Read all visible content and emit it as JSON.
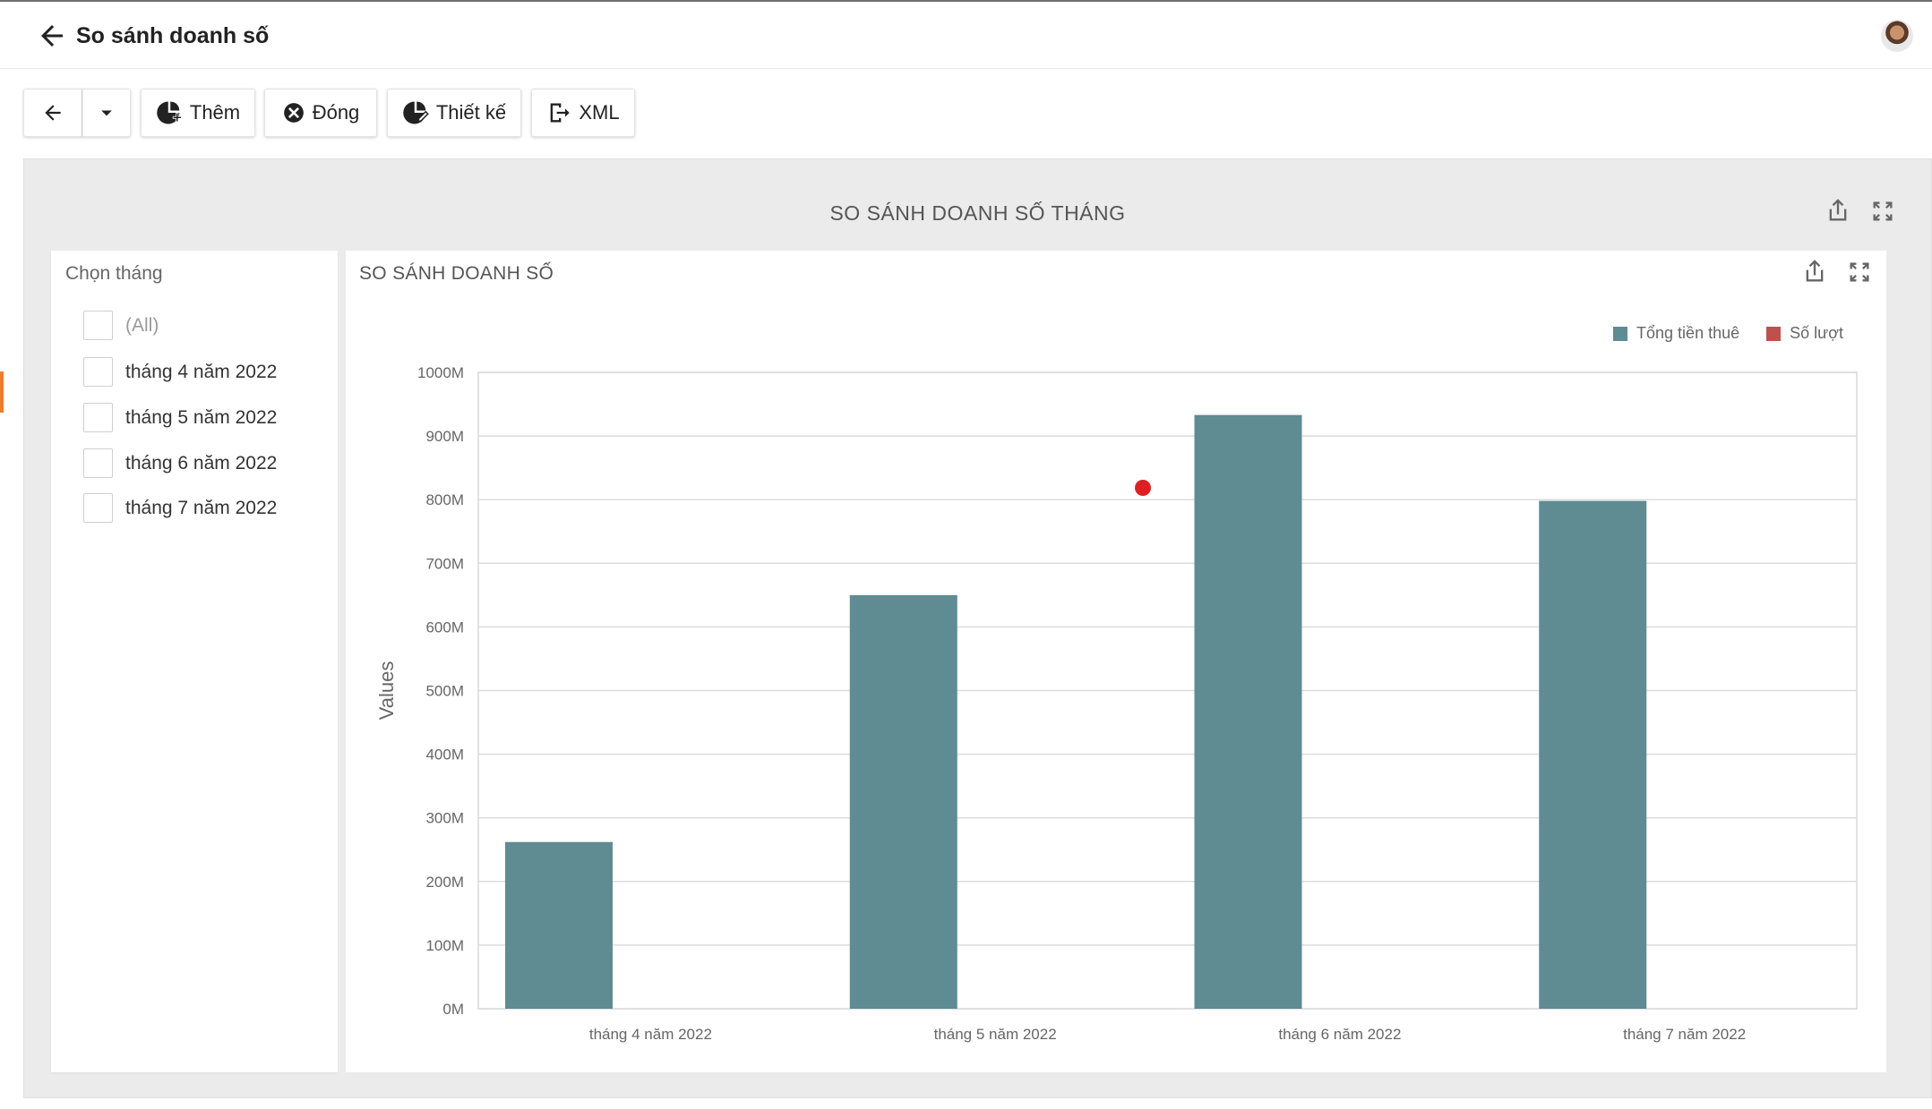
{
  "header": {
    "title": "So sánh doanh số"
  },
  "toolbar": {
    "add_label": "Thêm",
    "close_label": "Đóng",
    "design_label": "Thiết kế",
    "xml_label": "XML"
  },
  "dashboard": {
    "title": "SO SÁNH DOANH SỐ THÁNG"
  },
  "filter": {
    "title": "Chọn tháng",
    "items": [
      {
        "label": "(All)",
        "checked": false
      },
      {
        "label": "tháng 4 năm 2022",
        "checked": false
      },
      {
        "label": "tháng 5 năm 2022",
        "checked": false
      },
      {
        "label": "tháng 6 năm 2022",
        "checked": false
      },
      {
        "label": "tháng 7 năm 2022",
        "checked": false
      }
    ]
  },
  "chart_card": {
    "title": "SO SÁNH DOANH SỐ"
  },
  "colors": {
    "series_1": "#5f8b93",
    "series_2": "#c0504d",
    "marker": "#e02020",
    "accent": "#f07c2a"
  },
  "chart_data": {
    "type": "bar",
    "categories": [
      "tháng 4 năm 2022",
      "tháng 5 năm 2022",
      "tháng 6 năm 2022",
      "tháng 7 năm 2022"
    ],
    "series": [
      {
        "name": "Tổng tiền thuê",
        "values": [
          262,
          650,
          933,
          798
        ]
      },
      {
        "name": "Số lượt",
        "values": [
          null,
          null,
          null,
          null
        ]
      }
    ],
    "value_unit_suffix": "M",
    "yticks": [
      "0M",
      "100M",
      "200M",
      "300M",
      "400M",
      "500M",
      "600M",
      "700M",
      "800M",
      "900M",
      "1000M"
    ],
    "ylabel": "Values",
    "xlabel": "",
    "ylim": [
      0,
      1000
    ],
    "grid": true,
    "legend_position": "top-right"
  }
}
